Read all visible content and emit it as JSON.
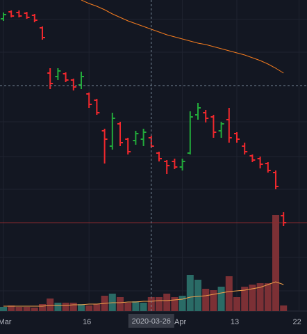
{
  "chart_data": {
    "type": "ohlc",
    "categories": [
      "Mar",
      null,
      null,
      null,
      null,
      null,
      null,
      null,
      null,
      null,
      null,
      "16",
      null,
      null,
      null,
      null,
      null,
      null,
      null,
      "2020-03-26",
      null,
      null,
      null,
      "Apr",
      null,
      null,
      null,
      null,
      null,
      null,
      "13",
      null,
      null,
      null,
      null,
      null,
      null,
      null,
      "22"
    ],
    "open": [
      433,
      443,
      442,
      441,
      438,
      420,
      355,
      350,
      354,
      345,
      338,
      325,
      316,
      272,
      250,
      282,
      260,
      258,
      260,
      262,
      240,
      228,
      228,
      220,
      240,
      295,
      298,
      292,
      272,
      288,
      268,
      250,
      236,
      232,
      225,
      212,
      150,
      null,
      null
    ],
    "high": [
      442,
      445,
      445,
      443,
      440,
      422,
      362,
      362,
      356,
      347,
      357,
      327,
      318,
      275,
      298,
      285,
      262,
      272,
      275,
      265,
      242,
      230,
      232,
      232,
      300,
      312,
      302,
      295,
      285,
      305,
      270,
      255,
      238,
      235,
      227,
      215,
      155,
      null,
      null
    ],
    "low": [
      430,
      435,
      435,
      433,
      428,
      403,
      332,
      345,
      342,
      330,
      332,
      305,
      295,
      225,
      245,
      250,
      238,
      252,
      250,
      248,
      228,
      210,
      217,
      215,
      238,
      288,
      284,
      262,
      262,
      255,
      255,
      238,
      227,
      218,
      212,
      188,
      135,
      null,
      null
    ],
    "close": [
      439,
      437,
      437,
      435,
      431,
      406,
      340,
      358,
      345,
      335,
      350,
      310,
      298,
      260,
      290,
      255,
      242,
      268,
      270,
      250,
      232,
      222,
      220,
      228,
      292,
      305,
      290,
      270,
      282,
      262,
      260,
      242,
      230,
      224,
      215,
      192,
      140,
      null,
      null
    ],
    "up_color": "#22ab3b",
    "down_color": "#f0282d",
    "ylim": [
      0,
      460
    ],
    "price_ma": {
      "color": "#f57c1f",
      "values": [
        null,
        null,
        null,
        null,
        null,
        null,
        null,
        null,
        null,
        null,
        460,
        455,
        451,
        446,
        440,
        435,
        430,
        426,
        422,
        418,
        414,
        410,
        407,
        404,
        401,
        398,
        396,
        393,
        390,
        387,
        384,
        381,
        377,
        373,
        368,
        362,
        355,
        null,
        null
      ]
    },
    "volume": [
      6,
      8,
      6,
      6,
      5,
      10,
      18,
      12,
      12,
      12,
      10,
      8,
      10,
      22,
      25,
      20,
      12,
      14,
      12,
      20,
      20,
      25,
      20,
      22,
      52,
      45,
      32,
      30,
      35,
      50,
      20,
      35,
      38,
      40,
      40,
      138,
      8,
      null,
      null
    ],
    "volume_up_color": "#2a6b66",
    "volume_down_color": "#7c3035",
    "volume_lim": [
      0,
      160
    ],
    "volume_ma": {
      "color": "#f5a24a",
      "values": [
        7,
        7,
        7,
        7,
        7,
        7,
        8,
        8,
        8,
        9,
        9,
        10,
        10,
        11,
        12,
        12,
        13,
        13,
        14,
        14,
        15,
        15,
        16,
        17,
        20,
        21,
        22,
        24,
        26,
        28,
        29,
        30,
        32,
        34,
        38,
        42,
        38,
        null,
        null
      ]
    },
    "crosshair_x": "2020-03-26",
    "crosshair_y": 337,
    "last_price_line": 140
  }
}
